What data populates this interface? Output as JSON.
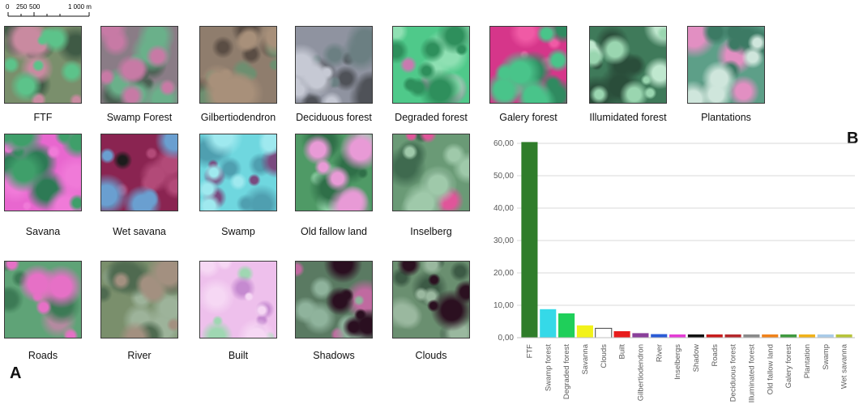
{
  "scale_bar": {
    "labels": [
      "0",
      "250",
      "500",
      "1 000 m"
    ]
  },
  "panel_labels": {
    "a": "A",
    "b": "B"
  },
  "tiles": [
    {
      "caption": "FTF",
      "base": "#7a8f6c",
      "blobs": [
        [
          "#5cc38a",
          0.35
        ],
        [
          "#c98aa0",
          0.25
        ],
        [
          "#3f5a45",
          0.3
        ]
      ]
    },
    {
      "caption": "Swamp Forest",
      "base": "#8a7c86",
      "blobs": [
        [
          "#c77aa5",
          0.45
        ],
        [
          "#6ab08a",
          0.3
        ],
        [
          "#4a5f52",
          0.2
        ]
      ]
    },
    {
      "caption": "Gilbertiodendron",
      "base": "#8f7d6d",
      "blobs": [
        [
          "#a8907a",
          0.4
        ],
        [
          "#6d8f70",
          0.3
        ],
        [
          "#5a4d44",
          0.25
        ]
      ]
    },
    {
      "caption": "Deciduous forest",
      "base": "#8f93a0",
      "blobs": [
        [
          "#c6c9d4",
          0.35
        ],
        [
          "#6b7f82",
          0.3
        ],
        [
          "#4f5258",
          0.3
        ]
      ]
    },
    {
      "caption": "Degraded forest",
      "base": "#4fc98a",
      "blobs": [
        [
          "#2e8f5c",
          0.4
        ],
        [
          "#8fe0b3",
          0.35
        ],
        [
          "#c87ab0",
          0.05
        ]
      ]
    },
    {
      "caption": "Galery forest",
      "base": "#d6368a",
      "blobs": [
        [
          "#49c48a",
          0.4
        ],
        [
          "#2f8a60",
          0.25
        ],
        [
          "#f05aa5",
          0.2
        ]
      ]
    },
    {
      "caption": "Illumidated forest",
      "base": "#3f7a5a",
      "blobs": [
        [
          "#9ad6b0",
          0.35
        ],
        [
          "#2a4d3a",
          0.3
        ],
        [
          "#c0e8cf",
          0.15
        ]
      ]
    },
    {
      "caption": "Plantations",
      "base": "#5d9f88",
      "blobs": [
        [
          "#cfe6dc",
          0.2
        ],
        [
          "#3c7a64",
          0.35
        ],
        [
          "#e28fc2",
          0.1
        ]
      ]
    },
    {
      "caption": "Savana",
      "base": "#e867cf",
      "blobs": [
        [
          "#3f9f6a",
          0.25
        ],
        [
          "#f07ad8",
          0.35
        ],
        [
          "#2d7a55",
          0.15
        ]
      ]
    },
    {
      "caption": "Wet savana",
      "base": "#8a2451",
      "blobs": [
        [
          "#6a9fd0",
          0.25
        ],
        [
          "#b24a78",
          0.35
        ],
        [
          "#1c1c1c",
          0.05
        ]
      ]
    },
    {
      "caption": "Swamp",
      "base": "#6fd7df",
      "blobs": [
        [
          "#9fe9ef",
          0.35
        ],
        [
          "#7a4a7f",
          0.2
        ],
        [
          "#4f9fb0",
          0.25
        ]
      ]
    },
    {
      "caption": "Old fallow land",
      "base": "#4f9a66",
      "blobs": [
        [
          "#e89ad6",
          0.3
        ],
        [
          "#2f6f48",
          0.3
        ],
        [
          "#8fd1a6",
          0.15
        ]
      ]
    },
    {
      "caption": "Inselberg",
      "base": "#6a9a76",
      "blobs": [
        [
          "#9fc9aa",
          0.3
        ],
        [
          "#e0559a",
          0.1
        ],
        [
          "#3f6a4f",
          0.35
        ]
      ]
    },
    {
      "caption": "Roads",
      "base": "#5fa377",
      "blobs": [
        [
          "#e670c6",
          0.3
        ],
        [
          "#3c7a55",
          0.3
        ],
        [
          "#b48aa0",
          0.15
        ]
      ]
    },
    {
      "caption": "River",
      "base": "#7a8f6c",
      "blobs": [
        [
          "#a39080",
          0.3
        ],
        [
          "#4f6a50",
          0.3
        ],
        [
          "#9db39a",
          0.2
        ]
      ]
    },
    {
      "caption": "Built",
      "base": "#eec0ec",
      "blobs": [
        [
          "#f6d8f4",
          0.35
        ],
        [
          "#c58ad0",
          0.2
        ],
        [
          "#9fd7b2",
          0.15
        ]
      ]
    },
    {
      "caption": "Shadows",
      "base": "#5a7a62",
      "blobs": [
        [
          "#2a0f20",
          0.3
        ],
        [
          "#8fb39c",
          0.25
        ],
        [
          "#c06aa0",
          0.1
        ]
      ]
    },
    {
      "caption": "Clouds",
      "base": "#6a8f70",
      "blobs": [
        [
          "#2b1020",
          0.2
        ],
        [
          "#9ab89f",
          0.25
        ],
        [
          "#3c5a45",
          0.25
        ]
      ]
    }
  ],
  "chart_data": {
    "type": "bar",
    "categories": [
      "FTF",
      "Swamp forest",
      "Degraded forest",
      "Savanna",
      "Clouds",
      "Built",
      "Gilbertiodendron",
      "River",
      "Inselbergs",
      "Shadow",
      "Roads",
      "Deciduous forest",
      "Illuminated forest",
      "Old fallow land",
      "Galery forest",
      "Plantation",
      "Swamp",
      "Wet savanna"
    ],
    "values": [
      60.4,
      8.8,
      7.5,
      3.8,
      2.9,
      2.0,
      1.4,
      1.1,
      1.0,
      1.0,
      1.0,
      1.0,
      1.0,
      1.0,
      1.0,
      1.0,
      1.0,
      1.0
    ],
    "colors": [
      "#2f7d2a",
      "#35d9e8",
      "#1fcf5a",
      "#f2f21a",
      "#ffffff",
      "#e81c1c",
      "#8a3f9a",
      "#2a5bd6",
      "#e43cd6",
      "#111111",
      "#c81c1c",
      "#b5282c",
      "#8a8a8a",
      "#f0821a",
      "#3f9a3f",
      "#f0b21a",
      "#a9cbe8",
      "#b7c43a"
    ],
    "yticks": [
      "0,00",
      "10,00",
      "20,00",
      "30,00",
      "40,00",
      "50,00",
      "60,00"
    ],
    "ylim": [
      0,
      60
    ],
    "grid": true
  }
}
